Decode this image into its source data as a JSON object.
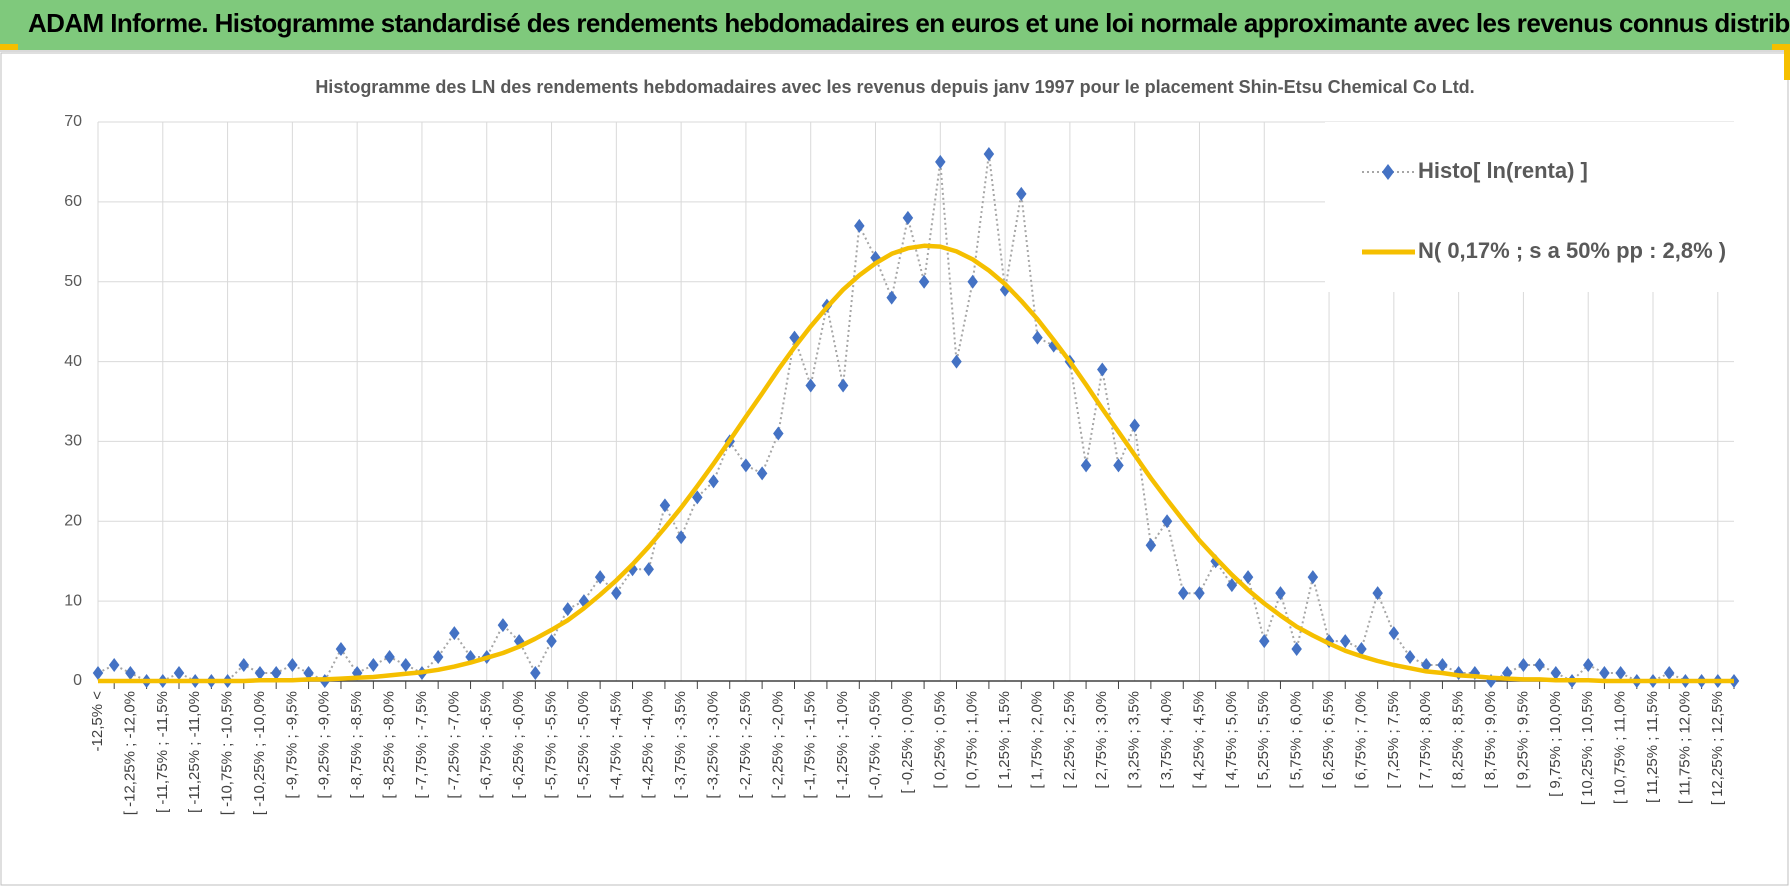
{
  "header": {
    "title": "ADAM Informe. Histogramme standardisé des rendements hebdomadaires en euros et une loi normale approximante avec les revenus connus distribués"
  },
  "chart_data": {
    "type": "line",
    "title": "Histogramme des LN des rendements hebdomadaires avec les revenus depuis janv 1997 pour le placement Shin-Etsu Chemical Co Ltd.",
    "categories": [
      "-12,5% <",
      null,
      "[ -12,25% ; -12,0%",
      null,
      "[ -11,75% ; -11,5%",
      null,
      "[ -11,25% ; -11,0%",
      null,
      "[ -10,75% ; -10,5%",
      null,
      "[ -10,25% ; -10,0%",
      null,
      "[ -9,75% ; -9,5%",
      null,
      "[ -9,25% ; -9,0%",
      null,
      "[ -8,75% ; -8,5%",
      null,
      "[ -8,25% ; -8,0%",
      null,
      "[ -7,75% ; -7,5%",
      null,
      "[ -7,25% ; -7,0%",
      null,
      "[ -6,75% ; -6,5%",
      null,
      "[ -6,25% ; -6,0%",
      null,
      "[ -5,75% ; -5,5%",
      null,
      "[ -5,25% ; -5,0%",
      null,
      "[ -4,75% ; -4,5%",
      null,
      "[ -4,25% ; -4,0%",
      null,
      "[ -3,75% ; -3,5%",
      null,
      "[ -3,25% ; -3,0%",
      null,
      "[ -2,75% ; -2,5%",
      null,
      "[ -2,25% ; -2,0%",
      null,
      "[ -1,75% ; -1,5%",
      null,
      "[ -1,25% ; -1,0%",
      null,
      "[ -0,75% ; -0,5%",
      null,
      "[ -0,25% ; 0,0%",
      null,
      "[ 0,25% ; 0,5%",
      null,
      "[ 0,75% ; 1,0%",
      null,
      "[ 1,25% ; 1,5%",
      null,
      "[ 1,75% ; 2,0%",
      null,
      "[ 2,25% ; 2,5%",
      null,
      "[ 2,75% ; 3,0%",
      null,
      "[ 3,25% ; 3,5%",
      null,
      "[ 3,75% ; 4,0%",
      null,
      "[ 4,25% ; 4,5%",
      null,
      "[ 4,75% ; 5,0%",
      null,
      "[ 5,25% ; 5,5%",
      null,
      "[ 5,75% ; 6,0%",
      null,
      "[ 6,25% ; 6,5%",
      null,
      "[ 6,75% ; 7,0%",
      null,
      "[ 7,25% ; 7,5%",
      null,
      "[ 7,75% ; 8,0%",
      null,
      "[ 8,25% ; 8,5%",
      null,
      "[ 8,75% ; 9,0%",
      null,
      "[ 9,25% ; 9,5%",
      null,
      "[ 9,75% ; 10,0%",
      null,
      "[ 10,25% ; 10,5%",
      null,
      "[ 10,75% ; 11,0%",
      null,
      "[ 11,25% ; 11,5%",
      null,
      "[ 11,75% ; 12,0%",
      null,
      "[ 12,25% ; 12,5%",
      null
    ],
    "series": [
      {
        "name": "Histo[ ln(renta) ]",
        "color": "#4472c4",
        "line_color": "#a6a6a6",
        "values": [
          1,
          2,
          1,
          0,
          0,
          1,
          0,
          0,
          0,
          2,
          1,
          1,
          2,
          1,
          0,
          4,
          1,
          2,
          3,
          2,
          1,
          3,
          6,
          3,
          3,
          7,
          5,
          1,
          5,
          9,
          10,
          13,
          11,
          14,
          14,
          22,
          18,
          23,
          25,
          30,
          27,
          26,
          31,
          43,
          37,
          47,
          37,
          57,
          53,
          48,
          58,
          50,
          65,
          40,
          50,
          66,
          49,
          61,
          43,
          42,
          40,
          27,
          39,
          27,
          32,
          17,
          20,
          11,
          11,
          15,
          12,
          13,
          5,
          11,
          4,
          13,
          5,
          5,
          4,
          11,
          6,
          3,
          2,
          2,
          1,
          1,
          0,
          1,
          2,
          2,
          1,
          0,
          2,
          1,
          1,
          0,
          0,
          1,
          0,
          0,
          0,
          0
        ]
      },
      {
        "name": "N( 0,17% ; s a 50% pp : 2,8% )",
        "color": "#f5bf00",
        "values": [
          0,
          0,
          0,
          0,
          0,
          0,
          0,
          0,
          0,
          0,
          0.1,
          0.1,
          0.1,
          0.2,
          0.2,
          0.3,
          0.4,
          0.5,
          0.7,
          0.9,
          1.1,
          1.4,
          1.8,
          2.3,
          2.9,
          3.5,
          4.3,
          5.3,
          6.4,
          7.6,
          9.1,
          10.8,
          12.6,
          14.6,
          16.8,
          19.2,
          21.7,
          24.4,
          27.2,
          30.1,
          33.1,
          36.0,
          39.0,
          41.8,
          44.4,
          46.8,
          49.0,
          50.8,
          52.3,
          53.5,
          54.2,
          54.5,
          54.4,
          53.8,
          52.8,
          51.4,
          49.7,
          47.6,
          45.3,
          42.7,
          40.0,
          37.1,
          34.1,
          31.2,
          28.3,
          25.4,
          22.7,
          20.1,
          17.6,
          15.4,
          13.3,
          11.4,
          9.7,
          8.2,
          6.8,
          5.7,
          4.7,
          3.8,
          3.1,
          2.5,
          2.0,
          1.6,
          1.2,
          1.0,
          0.7,
          0.6,
          0.4,
          0.3,
          0.2,
          0.2,
          0.1,
          0.1,
          0.1,
          0,
          0,
          0,
          0,
          0,
          0,
          0,
          0,
          0
        ]
      }
    ],
    "ylim": [
      0,
      70
    ],
    "yticks": [
      0,
      10,
      20,
      30,
      40,
      50,
      60,
      70
    ],
    "grid": true,
    "legend": "upper right"
  }
}
